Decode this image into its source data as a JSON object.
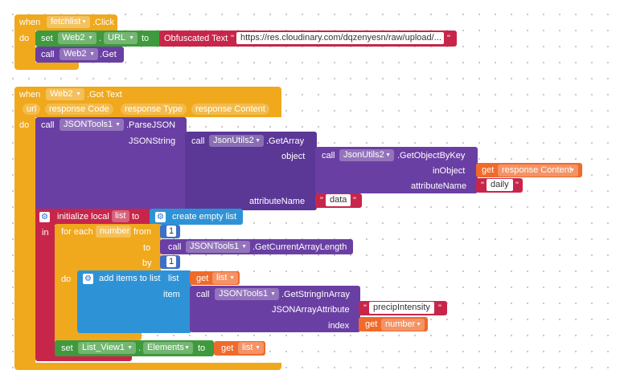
{
  "event1": {
    "when": "when",
    "component": "fetchlist",
    "event": ".Click",
    "do": "do",
    "set_kw": "set",
    "set_component": "Web2",
    "dot": ".",
    "set_property": "URL",
    "to": "to",
    "obfuscated": "Obfuscated Text",
    "url_value": "https://res.cloudinary.com/dqzenyesn/raw/upload/...",
    "call_kw": "call",
    "call_component": "Web2",
    "call_method": ".Get"
  },
  "event2": {
    "when": "when",
    "component": "Web2",
    "event": ".Got Text",
    "params": [
      "url",
      "response Code",
      "response Type",
      "response Content"
    ],
    "do": "do",
    "call_kw": "call",
    "parse_component": "JSONTools1",
    "parse_method": ".ParseJSON",
    "json_string": "JSONString",
    "getarray_component": "JsonUtils2",
    "getarray_method": ".GetArray",
    "object": "object",
    "getobj_component": "JsonUtils2",
    "getobj_method": ".GetObjectByKey",
    "in_object": "inObject",
    "get_kw": "get",
    "response_content": "response Content",
    "attribute_name": "attributeName",
    "daily": "daily",
    "data": "data",
    "init_local": "initialize local",
    "local_name": "list",
    "to": "to",
    "create_empty_list": "create empty list",
    "in": "in",
    "for_each": "for each",
    "loop_var": "number",
    "from": "from",
    "from_value": "1",
    "to2": "to",
    "length_component": "JSONTools1",
    "length_method": ".GetCurrentArrayLength",
    "by": "by",
    "by_value": "1",
    "do2": "do",
    "add_items": "add items to list",
    "list_kw": "list",
    "get_list": "list",
    "item": "item",
    "string_component": "JSONTools1",
    "string_method": ".GetStringInArray",
    "json_array_attribute": "JSONArrayAttribute",
    "precip": "precipIntensity",
    "index": "index",
    "get_number": "number",
    "set_kw": "set",
    "set_component": "List_View1",
    "dot": ".",
    "set_property": "Elements",
    "to3": "to",
    "get_list2": "list"
  },
  "quote": "\""
}
